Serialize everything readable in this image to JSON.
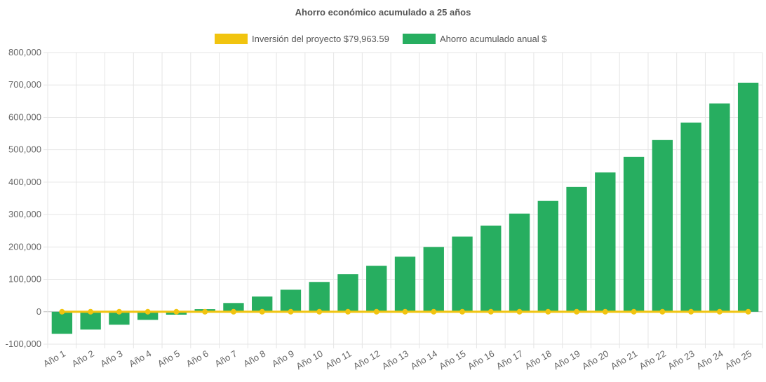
{
  "chart_data": {
    "type": "bar",
    "title": "Ahorro económico acumulado a 25 años",
    "categories": [
      "Año 1",
      "Año 2",
      "Año 3",
      "Año 4",
      "Año 5",
      "Año 6",
      "Año 7",
      "Año 8",
      "Año 9",
      "Año 10",
      "Año 11",
      "Año 12",
      "Año 13",
      "Año 14",
      "Año 15",
      "Año 16",
      "Año 17",
      "Año 18",
      "Año 19",
      "Año 20",
      "Año 21",
      "Año 22",
      "Año 23",
      "Año 24",
      "Año 25"
    ],
    "ylim": [
      -100000,
      800000
    ],
    "yticks": [
      -100000,
      0,
      100000,
      200000,
      300000,
      400000,
      500000,
      600000,
      700000,
      800000
    ],
    "ytick_labels": [
      "-100,000",
      "0",
      "100,000",
      "200,000",
      "300,000",
      "400,000",
      "500,000",
      "600,000",
      "700,000",
      "800,000"
    ],
    "grid": true,
    "legend": "top",
    "series": [
      {
        "name": "Inversión del proyecto $79,963.59",
        "type": "line",
        "color": "#f1c40f",
        "values": [
          0,
          0,
          0,
          0,
          0,
          0,
          0,
          0,
          0,
          0,
          0,
          0,
          0,
          0,
          0,
          0,
          0,
          0,
          0,
          0,
          0,
          0,
          0,
          0,
          0
        ]
      },
      {
        "name": "Ahorro acumulado anual $",
        "type": "bar",
        "color": "#27ae60",
        "values": [
          -68000,
          -55000,
          -40000,
          -25000,
          -9000,
          8000,
          27000,
          47000,
          68000,
          92000,
          116000,
          142000,
          170000,
          200000,
          232000,
          266000,
          303000,
          342000,
          385000,
          430000,
          478000,
          530000,
          584000,
          643000,
          707000
        ]
      }
    ]
  }
}
